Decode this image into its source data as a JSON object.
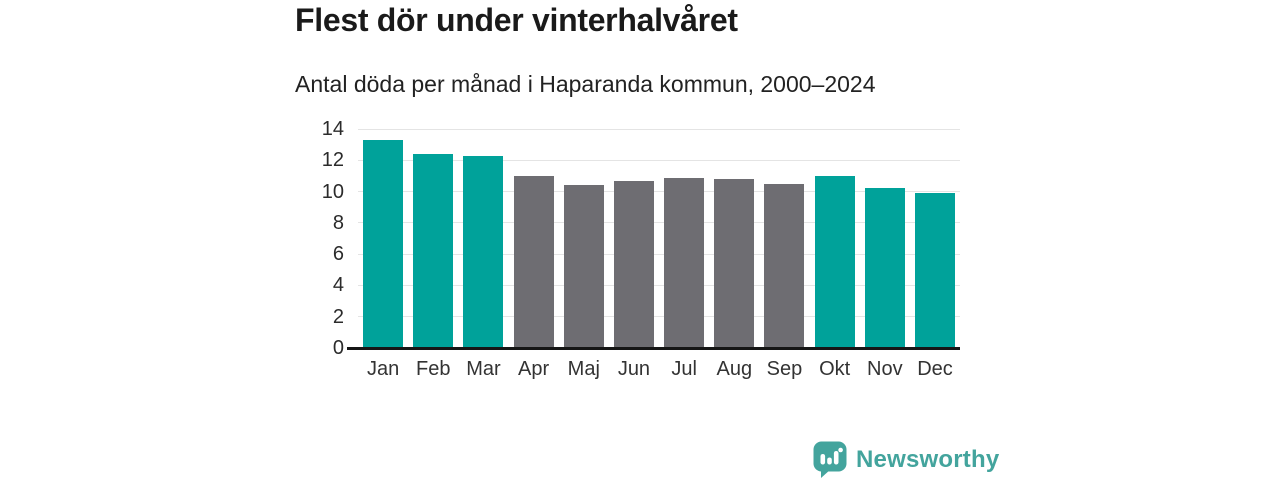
{
  "header": {
    "title": "Flest dör under vinterhalvåret",
    "subtitle": "Antal döda per månad i Haparanda kommun, 2000–2024"
  },
  "chart_data": {
    "type": "bar",
    "title": "Flest dör under vinterhalvåret",
    "subtitle": "Antal döda per månad i Haparanda kommun, 2000–2024",
    "categories": [
      "Jan",
      "Feb",
      "Mar",
      "Apr",
      "Maj",
      "Jun",
      "Jul",
      "Aug",
      "Sep",
      "Okt",
      "Nov",
      "Dec"
    ],
    "values": [
      13.3,
      12.4,
      12.3,
      11.0,
      10.4,
      10.7,
      10.9,
      10.8,
      10.5,
      11.0,
      10.2,
      9.9
    ],
    "bar_groups": [
      "winter",
      "winter",
      "winter",
      "summer",
      "summer",
      "summer",
      "summer",
      "summer",
      "summer",
      "winter",
      "winter",
      "winter"
    ],
    "group_colors": {
      "winter": "#00a29a",
      "summer": "#6e6d72"
    },
    "xlabel": "",
    "ylabel": "",
    "ylim": [
      0,
      14
    ],
    "yticks": [
      0,
      2,
      4,
      6,
      8,
      10,
      12,
      14
    ],
    "ytick_step": 2,
    "grid": true,
    "legend": false,
    "gridline_color": "#e4e4e4",
    "axis_color": "#161616"
  },
  "footer": {
    "brand": "Newsworthy",
    "brand_color": "#43a49d"
  }
}
